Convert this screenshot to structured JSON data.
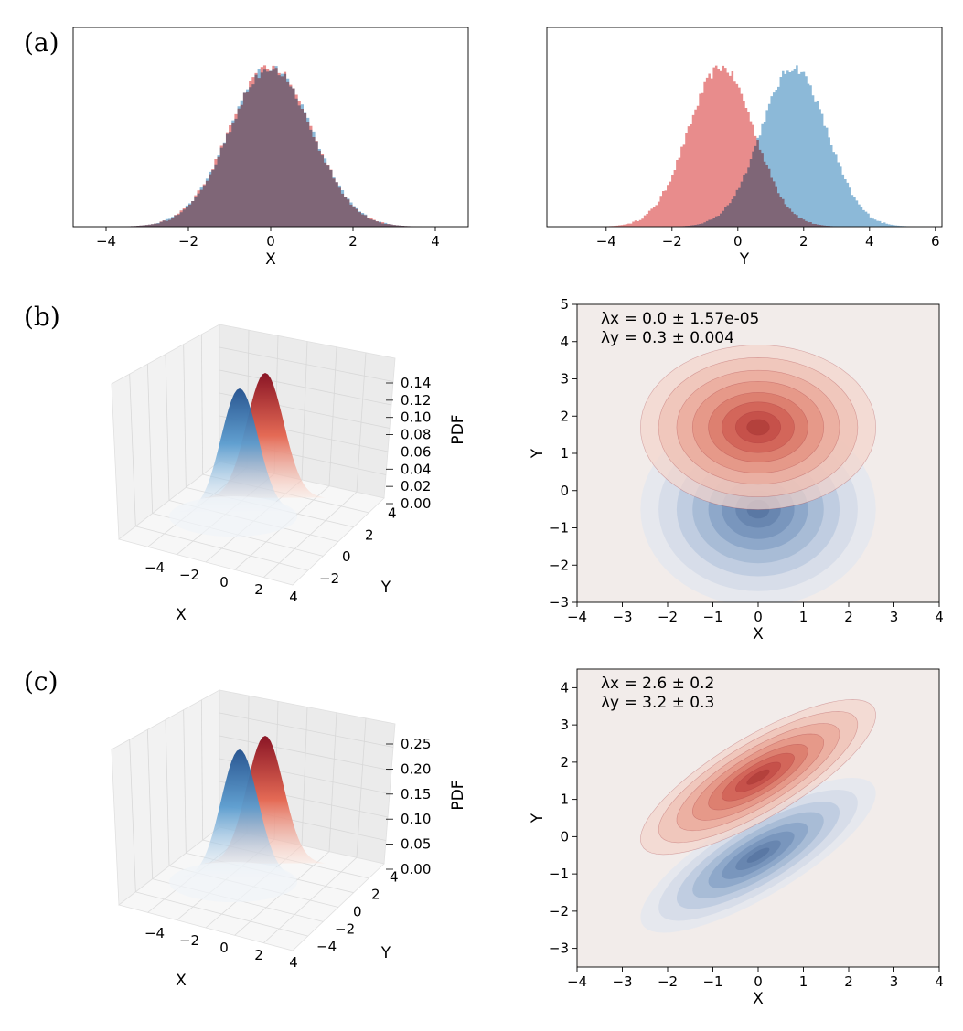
{
  "panel_labels": [
    "(a)",
    "(b)",
    "(c)"
  ],
  "colors": {
    "red": "#e06666",
    "blue": "#5b9bc8",
    "overlap": "#7a7fa0",
    "background": "#f2ecea"
  },
  "chart_data": [
    {
      "id": "a-left",
      "type": "histogram",
      "xlabel": "X",
      "xlim": [
        -4.8,
        4.8
      ],
      "xticks": [
        -4,
        -2,
        0,
        2,
        4
      ],
      "series": [
        {
          "color": "red",
          "mean": 0.0,
          "std": 1.0
        },
        {
          "color": "blue",
          "mean": 0.0,
          "std": 1.0
        }
      ]
    },
    {
      "id": "a-right",
      "type": "histogram",
      "xlabel": "Y",
      "xlim": [
        -5.8,
        6.2
      ],
      "xticks": [
        -4,
        -2,
        0,
        2,
        4,
        6
      ],
      "series": [
        {
          "color": "red",
          "mean": -0.5,
          "std": 1.0
        },
        {
          "color": "blue",
          "mean": 1.7,
          "std": 1.0
        }
      ]
    },
    {
      "id": "b-3d",
      "type": "surface3d",
      "xlabel": "X",
      "ylabel": "Y",
      "zlabel": "PDF",
      "xticks": [
        "−4",
        "−2",
        "0",
        "2",
        "4"
      ],
      "yticks": [
        "−2",
        "0",
        "2",
        "4"
      ],
      "zticks": [
        "0.00",
        "0.02",
        "0.04",
        "0.06",
        "0.08",
        "0.10",
        "0.12",
        "0.14"
      ]
    },
    {
      "id": "b-contour",
      "type": "contour",
      "xlabel": "X",
      "ylabel": "Y",
      "xlim": [
        -4,
        4
      ],
      "ylim": [
        -3,
        5
      ],
      "xticks": [
        -4,
        -3,
        -2,
        -1,
        0,
        1,
        2,
        3,
        4
      ],
      "yticks": [
        -3,
        -2,
        -1,
        0,
        1,
        2,
        3,
        4,
        5
      ],
      "annotations": [
        "λx = 0.0 ± 1.57e-05",
        "λy = 0.3 ± 0.004"
      ],
      "series": [
        {
          "color": "blue",
          "mean": [
            0,
            -0.5
          ],
          "sigma": [
            1.0,
            1.0
          ],
          "rho": 0.0
        },
        {
          "color": "red",
          "mean": [
            0,
            1.7
          ],
          "sigma": [
            1.0,
            0.85
          ],
          "rho": 0.0
        }
      ]
    },
    {
      "id": "c-3d",
      "type": "surface3d",
      "xlabel": "X",
      "ylabel": "Y",
      "zlabel": "PDF",
      "xticks": [
        "−4",
        "−2",
        "0",
        "2",
        "4"
      ],
      "yticks": [
        "−4",
        "−2",
        "0",
        "2",
        "4"
      ],
      "zticks": [
        "0.00",
        "0.05",
        "0.10",
        "0.15",
        "0.20",
        "0.25"
      ]
    },
    {
      "id": "c-contour",
      "type": "contour",
      "xlabel": "X",
      "ylabel": "Y",
      "xlim": [
        -4,
        4
      ],
      "ylim": [
        -3.5,
        4.5
      ],
      "xticks": [
        -4,
        -3,
        -2,
        -1,
        0,
        1,
        2,
        3,
        4
      ],
      "yticks": [
        -3,
        -2,
        -1,
        0,
        1,
        2,
        3,
        4
      ],
      "annotations": [
        "λx = 2.6 ± 0.2",
        "λy = 3.2 ± 0.3"
      ],
      "series": [
        {
          "color": "blue",
          "mean": [
            0,
            -0.5
          ],
          "sigma": [
            1.0,
            0.8
          ],
          "rho": 0.8
        },
        {
          "color": "red",
          "mean": [
            0,
            1.6
          ],
          "sigma": [
            1.0,
            0.8
          ],
          "rho": 0.8
        }
      ]
    }
  ]
}
